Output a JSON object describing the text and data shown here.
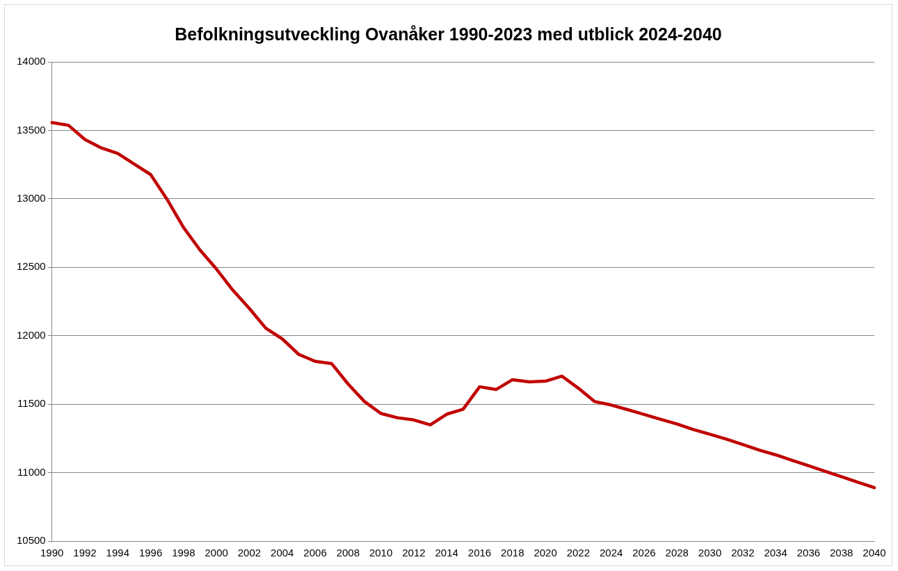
{
  "chart_data": {
    "type": "line",
    "title": "Befolkningsutveckling Ovanåker 1990-2023 med utblick 2024-2040",
    "categories": [
      "1990",
      null,
      "1992",
      null,
      "1994",
      null,
      "1996",
      null,
      "1998",
      null,
      "2000",
      null,
      "2002",
      null,
      "2004",
      null,
      "2006",
      null,
      "2008",
      null,
      "2010",
      null,
      "2012",
      null,
      "2014",
      null,
      "2016",
      null,
      "2018",
      null,
      "2020",
      null,
      "2022",
      null,
      "2024",
      null,
      "2026",
      null,
      "2028",
      null,
      "2030",
      null,
      "2032",
      null,
      "2034",
      null,
      "2036",
      null,
      "2038",
      null,
      "2040"
    ],
    "series": [
      {
        "color": "#c00000",
        "values": [
          13557,
          13537,
          13434,
          13372,
          13331,
          13254,
          13177,
          12996,
          12790,
          12626,
          12487,
          12332,
          12199,
          12055,
          11977,
          11864,
          11813,
          11797,
          11648,
          11519,
          11432,
          11401,
          11385,
          11349,
          11427,
          11463,
          11627,
          11607,
          11679,
          11663,
          11668,
          11705,
          11617,
          11519,
          11494,
          11460,
          11425,
          11390,
          11355,
          11315,
          11280,
          11245,
          11205,
          11165,
          11130,
          11090,
          11050,
          11010,
          10970,
          10930,
          10890
        ]
      }
    ],
    "ylim": [
      10500,
      14000
    ],
    "yticks": [
      10500,
      11000,
      11500,
      12000,
      12500,
      13000,
      13500,
      14000
    ],
    "grid": "y",
    "legend": false,
    "marker": "none",
    "line_style": "solid"
  }
}
